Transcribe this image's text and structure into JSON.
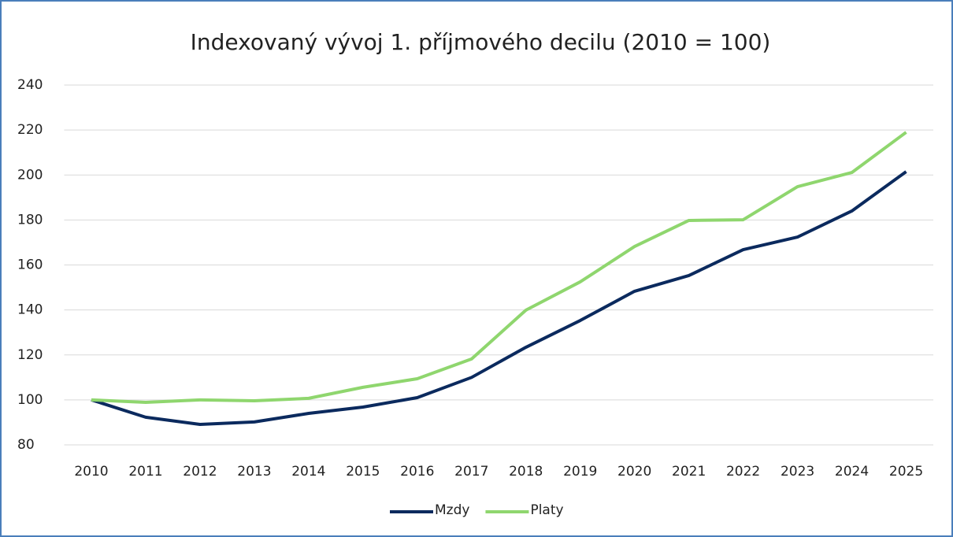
{
  "chart_data": {
    "type": "line",
    "title": "Indexovaný vývoj 1. příjmového decilu (2010 = 100)",
    "categories": [
      "2010",
      "2011",
      "2012",
      "2013",
      "2014",
      "2015",
      "2016",
      "2017",
      "2018",
      "2019",
      "2020",
      "2021",
      "2022",
      "2023",
      "2024",
      "2025"
    ],
    "series": [
      {
        "name": "Mzdy",
        "color": "#0b2a5e",
        "values": [
          100,
          92.3,
          89.1,
          90.2,
          94,
          96.8,
          101,
          110,
          123.4,
          135.3,
          148.3,
          155.3,
          166.8,
          172.4,
          184,
          201.5
        ]
      },
      {
        "name": "Platy",
        "color": "#8fd66e",
        "values": [
          100,
          98.9,
          100,
          99.6,
          100.7,
          105.6,
          109.4,
          118.2,
          139.9,
          152.5,
          168.2,
          179.8,
          180.1,
          194.8,
          201.1,
          219
        ]
      }
    ],
    "ylim": [
      80,
      240
    ],
    "yticks": [
      80,
      100,
      120,
      140,
      160,
      180,
      200,
      220,
      240
    ],
    "grid": true,
    "legend": "bottom"
  }
}
